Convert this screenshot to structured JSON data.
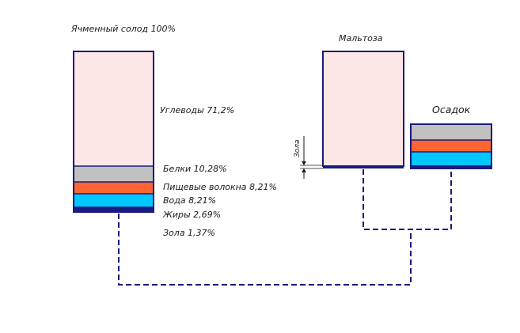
{
  "title": "Ячменный солод 100%",
  "composition": {
    "carbs": "Углеводы 71,2%",
    "proteins": "Белки 10,28%",
    "fiber": "Пищевые волокна 8,21%",
    "water": "Вода 8,21%",
    "fats": "Жиры 2,69%",
    "ash": "Зола 1,37%"
  },
  "maltose": {
    "label": "Мальтоза",
    "ash_label": "Зола"
  },
  "sediment": {
    "label": "Осадок"
  },
  "colors": {
    "frame": "#1a1a80",
    "carbs": "#fde6e6",
    "proteins": "#c0c0c0",
    "fiber": "#ff6433",
    "water": "#00c8ff",
    "fats": "#1a1a80",
    "flow_line": "#1a1a80"
  }
}
